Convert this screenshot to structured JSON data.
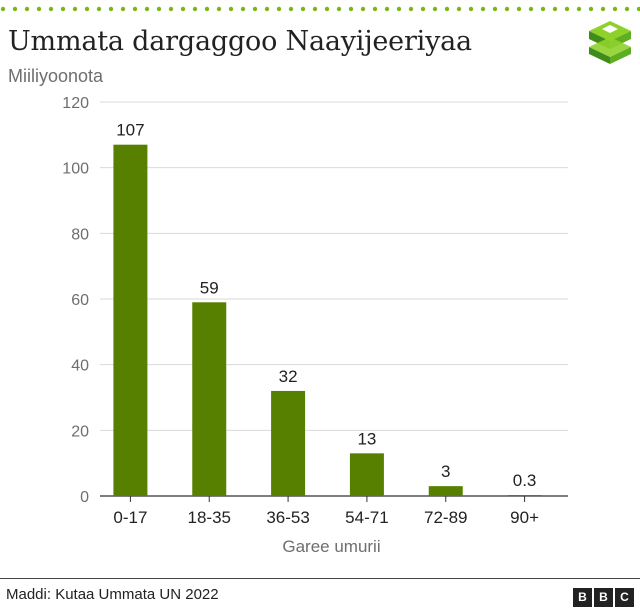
{
  "header": {
    "title": "Ummata dargaggoo Naayijeeriyaa",
    "subtitle": "Miiliyoonota"
  },
  "footer": {
    "source": "Maddi: Kutaa Ummata UN 2022",
    "brand_letters": [
      "B",
      "B",
      "C"
    ]
  },
  "colors": {
    "bar": "#588000",
    "accent_dots": "#7cb518",
    "logo_dark": "#3f8c1a",
    "logo_light": "#8ed12b"
  },
  "logo_icon": "bbc-stacked-blocks-icon",
  "chart_data": {
    "type": "bar",
    "categories": [
      "0-17",
      "18-35",
      "36-53",
      "54-71",
      "72-89",
      "90+"
    ],
    "values": [
      107,
      59,
      32,
      13,
      3,
      0.3
    ],
    "data_labels": [
      "107",
      "59",
      "32",
      "13",
      "3",
      "0.3"
    ],
    "title": "",
    "xlabel": "Garee umurii",
    "ylabel": "",
    "ylim": [
      0,
      120
    ],
    "yticks": [
      0,
      20,
      40,
      60,
      80,
      100,
      120
    ],
    "grid": true
  }
}
